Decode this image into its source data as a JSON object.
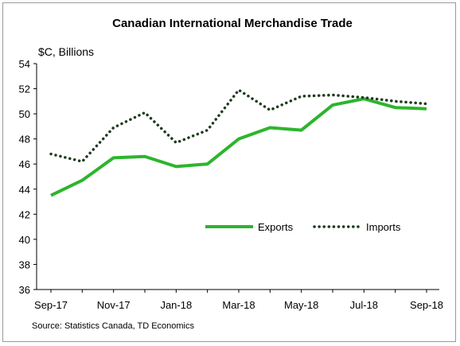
{
  "chart_data": {
    "type": "line",
    "title": "Canadian International Merchandise Trade",
    "ylabel": "$C, Billions",
    "xlabel": "",
    "source": "Source: Statistics Canada, TD Economics",
    "categories": [
      "Sep-17",
      "Oct-17",
      "Nov-17",
      "Dec-17",
      "Jan-18",
      "Feb-18",
      "Mar-18",
      "Apr-18",
      "May-18",
      "Jun-18",
      "Jul-18",
      "Aug-18",
      "Sep-18"
    ],
    "x_tick_labels": [
      "Sep-17",
      "Nov-17",
      "Jan-18",
      "Mar-18",
      "May-18",
      "Jul-18",
      "Sep-18"
    ],
    "y_ticks": [
      36,
      38,
      40,
      42,
      44,
      46,
      48,
      50,
      52,
      54
    ],
    "ylim": [
      36,
      54
    ],
    "grid": false,
    "legend": "inside-lower-right",
    "series": [
      {
        "name": "Exports",
        "style": "solid",
        "color": "#2db52d",
        "values": [
          43.5,
          44.7,
          46.5,
          46.6,
          45.8,
          46.0,
          48.0,
          48.9,
          48.7,
          50.7,
          51.2,
          50.5,
          50.4
        ]
      },
      {
        "name": "Imports",
        "style": "dotted",
        "color": "#1e3b1e",
        "values": [
          46.8,
          46.2,
          48.9,
          50.1,
          47.7,
          48.7,
          51.9,
          50.3,
          51.4,
          51.5,
          51.3,
          51.0,
          50.8
        ]
      }
    ]
  }
}
